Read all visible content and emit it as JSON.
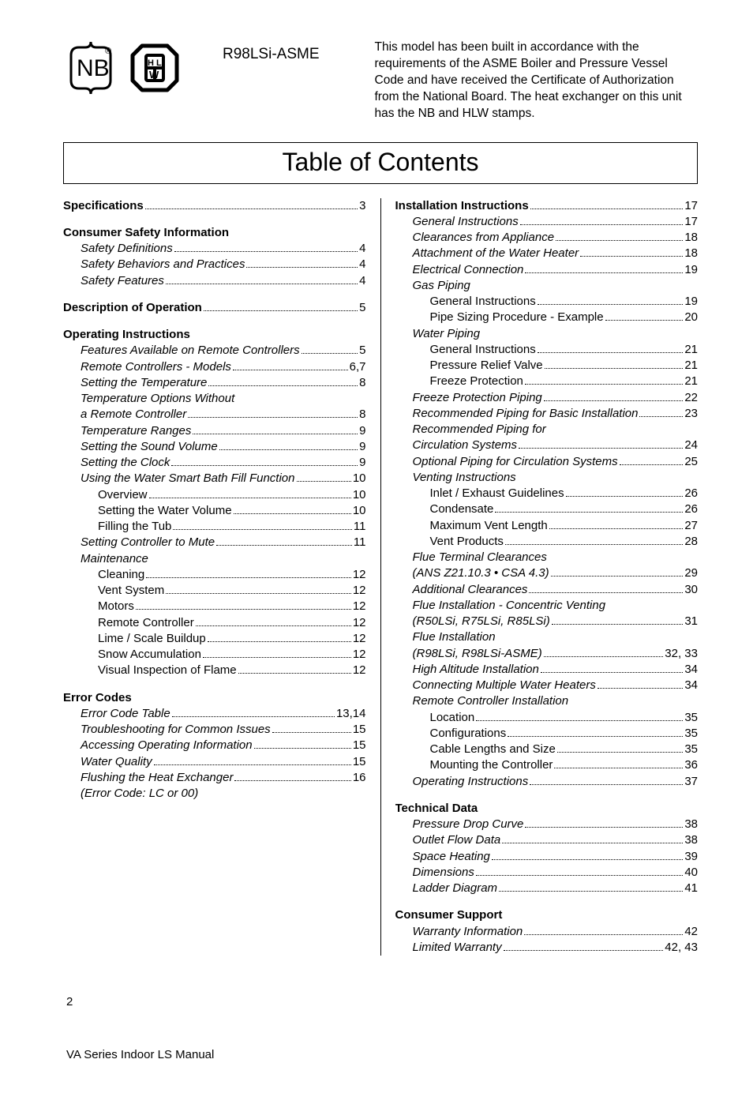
{
  "header": {
    "model": "R98LSi-ASME",
    "blurb": "This model has been built in accordance with the requirements of the ASME Boiler and Pressure Vessel Code and have received the Certificate of Authorization from the National Board.  The heat exchanger on this unit has the NB and HLW stamps."
  },
  "toc_title": "Table of Contents",
  "left": [
    {
      "label": "Specifications",
      "page": "3",
      "bold": true
    },
    {
      "spacer": true
    },
    {
      "label": "Consumer Safety Information",
      "bold": true,
      "nopage": true
    },
    {
      "label": "Safety Definitions",
      "page": "4",
      "ital": true,
      "indent": 1
    },
    {
      "label": "Safety Behaviors and Practices",
      "page": "4",
      "ital": true,
      "indent": 1
    },
    {
      "label": "Safety Features",
      "page": "4",
      "ital": true,
      "indent": 1
    },
    {
      "spacer": true
    },
    {
      "label": "Description of Operation",
      "page": "5",
      "bold": true
    },
    {
      "spacer": true
    },
    {
      "label": "Operating Instructions",
      "bold": true,
      "nopage": true
    },
    {
      "label": "Features Available on Remote Controllers",
      "page": "5",
      "ital": true,
      "indent": 1
    },
    {
      "label": "Remote Controllers - Models",
      "page": "6,7",
      "ital": true,
      "indent": 1
    },
    {
      "label": "Setting the Temperature",
      "page": "8",
      "ital": true,
      "indent": 1
    },
    {
      "label": "Temperature Options Without",
      "ital": true,
      "indent": 1,
      "nopage": true
    },
    {
      "label": "a Remote Controller",
      "page": "8",
      "ital": true,
      "indent": 1
    },
    {
      "label": "Temperature Ranges",
      "page": "9",
      "ital": true,
      "indent": 1
    },
    {
      "label": "Setting the Sound Volume",
      "page": "9",
      "ital": true,
      "indent": 1
    },
    {
      "label": "Setting the Clock",
      "page": "9",
      "ital": true,
      "indent": 1
    },
    {
      "label": "Using the Water Smart Bath Fill Function",
      "page": "10",
      "ital": true,
      "indent": 1
    },
    {
      "label": "Overview",
      "page": "10",
      "indent": 2
    },
    {
      "label": "Setting the Water Volume",
      "page": "10",
      "indent": 2
    },
    {
      "label": "Filling the Tub",
      "page": "11",
      "indent": 2
    },
    {
      "label": "Setting Controller to Mute",
      "page": "11",
      "ital": true,
      "indent": 1
    },
    {
      "label": "Maintenance",
      "ital": true,
      "indent": 1,
      "nopage": true
    },
    {
      "label": "Cleaning",
      "page": "12",
      "indent": 2
    },
    {
      "label": "Vent System",
      "page": "12",
      "indent": 2
    },
    {
      "label": "Motors",
      "page": "12",
      "indent": 2
    },
    {
      "label": "Remote Controller",
      "page": "12",
      "indent": 2
    },
    {
      "label": "Lime / Scale Buildup",
      "page": "12",
      "indent": 2
    },
    {
      "label": "Snow Accumulation",
      "page": "12",
      "indent": 2
    },
    {
      "label": "Visual Inspection of Flame",
      "page": "12",
      "indent": 2
    },
    {
      "spacer": true
    },
    {
      "label": "Error Codes",
      "bold": true,
      "nopage": true
    },
    {
      "label": "Error Code Table",
      "page": "13,14",
      "ital": true,
      "indent": 1
    },
    {
      "label": "Troubleshooting for Common Issues",
      "page": "15",
      "ital": true,
      "indent": 1
    },
    {
      "label": "Accessing Operating Information",
      "page": "15",
      "ital": true,
      "indent": 1
    },
    {
      "label": "Water Quality",
      "page": "15",
      "ital": true,
      "indent": 1
    },
    {
      "label": "Flushing the Heat Exchanger",
      "page": "16",
      "ital": true,
      "indent": 1
    },
    {
      "label": "(Error Code: LC or 00)",
      "ital": true,
      "indent": 1,
      "nopage": true
    }
  ],
  "right": [
    {
      "label": "Installation Instructions",
      "page": "17",
      "bold": true
    },
    {
      "label": "General Instructions",
      "page": "17",
      "ital": true,
      "indent": 1
    },
    {
      "label": "Clearances from Appliance",
      "page": "18",
      "ital": true,
      "indent": 1
    },
    {
      "label": "Attachment of the Water Heater",
      "page": "18",
      "ital": true,
      "indent": 1
    },
    {
      "label": "Electrical Connection",
      "page": "19",
      "ital": true,
      "indent": 1
    },
    {
      "label": "Gas Piping",
      "ital": true,
      "indent": 1,
      "nopage": true
    },
    {
      "label": "General Instructions",
      "page": "19",
      "indent": 2
    },
    {
      "label": "Pipe Sizing Procedure - Example",
      "page": "20",
      "indent": 2
    },
    {
      "label": "Water Piping",
      "ital": true,
      "indent": 1,
      "nopage": true
    },
    {
      "label": "General Instructions",
      "page": "21",
      "indent": 2
    },
    {
      "label": "Pressure Relief Valve",
      "page": "21",
      "indent": 2
    },
    {
      "label": "Freeze Protection",
      "page": "21",
      "indent": 2
    },
    {
      "label": "Freeze Protection Piping",
      "page": "22",
      "ital": true,
      "indent": 1
    },
    {
      "label": "Recommended Piping for Basic Installation",
      "page": "23",
      "ital": true,
      "indent": 1
    },
    {
      "label": "Recommended Piping for",
      "ital": true,
      "indent": 1,
      "nopage": true
    },
    {
      "label": "Circulation Systems",
      "page": "24",
      "ital": true,
      "indent": 1
    },
    {
      "label": "Optional Piping for Circulation Systems",
      "page": "25",
      "ital": true,
      "indent": 1
    },
    {
      "label": "Venting Instructions",
      "ital": true,
      "indent": 1,
      "nopage": true
    },
    {
      "label": "Inlet / Exhaust Guidelines",
      "page": "26",
      "indent": 2
    },
    {
      "label": "Condensate",
      "page": "26",
      "indent": 2
    },
    {
      "label": "Maximum Vent Length",
      "page": "27",
      "indent": 2
    },
    {
      "label": "Vent Products",
      "page": "28",
      "indent": 2
    },
    {
      "label": "Flue Terminal Clearances",
      "ital": true,
      "indent": 1,
      "nopage": true
    },
    {
      "label": "(ANS Z21.10.3 •  CSA 4.3)",
      "page": "29",
      "ital": true,
      "indent": 1
    },
    {
      "label": "Additional Clearances",
      "page": "30",
      "ital": true,
      "indent": 1
    },
    {
      "label": "Flue Installation - Concentric Venting",
      "ital": true,
      "indent": 1,
      "nopage": true
    },
    {
      "label": "(R50LSi, R75LSi, R85LSi)",
      "page": "31",
      "ital": true,
      "indent": 1
    },
    {
      "label": "Flue Installation",
      "ital": true,
      "indent": 1,
      "nopage": true
    },
    {
      "label": "(R98LSi, R98LSi-ASME)",
      "page": "32, 33",
      "ital": true,
      "indent": 1
    },
    {
      "label": "High Altitude Installation",
      "page": "34",
      "ital": true,
      "indent": 1
    },
    {
      "label": "Connecting Multiple Water Heaters",
      "page": "34",
      "ital": true,
      "indent": 1
    },
    {
      "label": "Remote Controller Installation",
      "ital": true,
      "indent": 1,
      "nopage": true
    },
    {
      "label": "Location",
      "page": "35",
      "indent": 2
    },
    {
      "label": "Configurations",
      "page": "35",
      "indent": 2
    },
    {
      "label": "Cable Lengths and Size",
      "page": "35",
      "indent": 2
    },
    {
      "label": "Mounting the Controller",
      "page": "36",
      "indent": 2
    },
    {
      "label": "Operating Instructions",
      "page": "37",
      "ital": true,
      "indent": 1
    },
    {
      "spacer": true
    },
    {
      "label": "Technical Data",
      "bold": true,
      "nopage": true
    },
    {
      "label": "Pressure Drop Curve",
      "page": "38",
      "ital": true,
      "indent": 1
    },
    {
      "label": "Outlet Flow Data",
      "page": "38",
      "ital": true,
      "indent": 1
    },
    {
      "label": "Space Heating",
      "page": "39",
      "ital": true,
      "indent": 1
    },
    {
      "label": "Dimensions",
      "page": "40",
      "ital": true,
      "indent": 1
    },
    {
      "label": "Ladder Diagram",
      "page": "41",
      "ital": true,
      "indent": 1
    },
    {
      "spacer": true
    },
    {
      "label": "Consumer Support",
      "bold": true,
      "nopage": true
    },
    {
      "label": "Warranty Information",
      "page": "42",
      "ital": true,
      "indent": 1
    },
    {
      "label": "Limited Warranty",
      "page": "42, 43",
      "ital": true,
      "indent": 1
    }
  ],
  "footer": {
    "page_num": "2",
    "title": "VA Series Indoor LS Manual"
  }
}
